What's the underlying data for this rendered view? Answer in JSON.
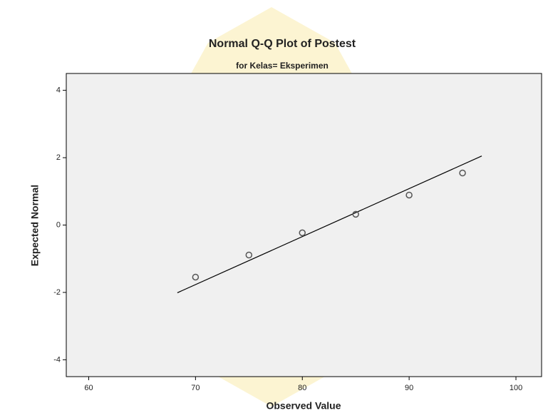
{
  "chart_data": {
    "type": "scatter",
    "title": "Normal Q-Q Plot of Postest",
    "subtitle": "for Kelas= Eksperimen",
    "x_label": "Observed Value",
    "y_label": "Expected Normal",
    "x": [
      70,
      75,
      80,
      85,
      90,
      95
    ],
    "values": [
      -1.545,
      -0.89,
      -0.23,
      0.32,
      0.89,
      1.545
    ],
    "color": "#555555",
    "reference_line": {
      "x": [
        68.3,
        96.8
      ],
      "y": [
        -2.01,
        2.05
      ],
      "color": "#000000"
    },
    "xlim": [
      57.9,
      102.4
    ],
    "ylim": [
      -4.5,
      4.5
    ],
    "xticks": [
      60,
      70,
      80,
      90,
      100
    ],
    "yticks": [
      -4,
      -2,
      0,
      2,
      4
    ],
    "background": "#f0f0f0"
  }
}
